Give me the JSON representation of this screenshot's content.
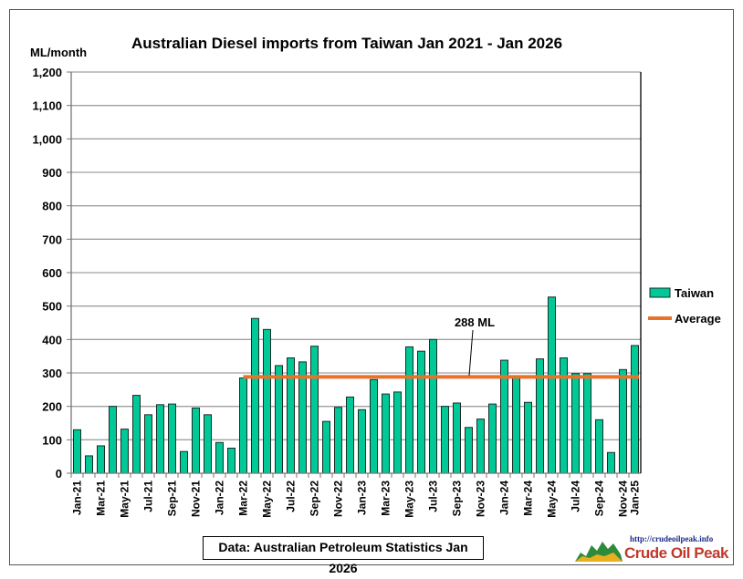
{
  "chart_data": {
    "type": "bar",
    "title": "Australian Diesel imports from Taiwan Jan 2021 - Jan 2026",
    "ylabel": "ML/month",
    "xlabel": "",
    "ylim": [
      0,
      1200
    ],
    "yticks": [
      0,
      100,
      200,
      300,
      400,
      500,
      600,
      700,
      800,
      900,
      1000,
      1100,
      1200
    ],
    "ytick_labels": [
      "0",
      "100",
      "200",
      "300",
      "400",
      "500",
      "600",
      "700",
      "800",
      "900",
      "1,000",
      "1,100",
      "1,200"
    ],
    "grid": true,
    "legend_position": "right",
    "xtick_labels": [
      "Jan-21",
      "Mar-21",
      "May-21",
      "Jul-21",
      "Sep-21",
      "Nov-21",
      "Jan-22",
      "Mar-22",
      "May-22",
      "Jul-22",
      "Sep-22",
      "Nov-22",
      "Jan-23",
      "Mar-23",
      "May-23",
      "Jul-23",
      "Sep-23",
      "Nov-23",
      "Jan-24",
      "Mar-24",
      "May-24",
      "Jul-24",
      "Sep-24",
      "Nov-24",
      "Jan-25"
    ],
    "series": [
      {
        "name": "Taiwan",
        "color": "#00c896",
        "values": [
          130,
          52,
          82,
          200,
          132,
          233,
          175,
          205,
          207,
          65,
          195,
          175,
          92,
          75,
          285,
          463,
          430,
          322,
          345,
          333,
          380,
          155,
          197,
          228,
          190,
          280,
          237,
          243,
          378,
          365,
          400,
          200,
          210,
          137,
          162,
          207,
          338,
          287,
          212,
          342,
          527,
          345,
          298,
          298,
          160,
          62,
          310,
          382
        ]
      },
      {
        "name": "Average",
        "color": "#e8722c",
        "value": 288,
        "start_index": 14
      }
    ],
    "annotation": "288 ML"
  },
  "footer": "Data: Australian Petroleum Statistics Jan 2026",
  "logo": {
    "url": "http://crudeoilpeak.info",
    "name": "Crude Oil Peak"
  }
}
